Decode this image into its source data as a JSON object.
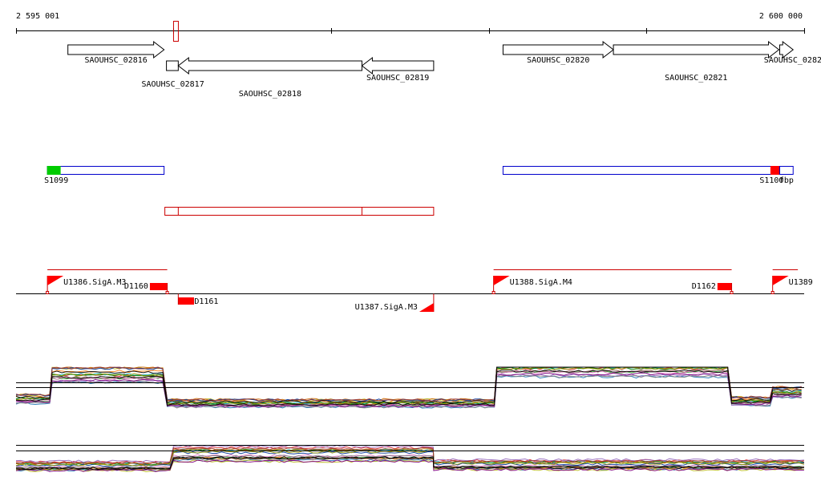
{
  "ruler": {
    "start_label": "2 595 001",
    "end_label": "2 600 000",
    "start_coord": 2595001,
    "end_coord": 2600000,
    "tick_coords": [
      2595001,
      2596000,
      2597000,
      2598000,
      2599000,
      2600000
    ]
  },
  "genes": [
    {
      "id": "SAOUHSC_02816",
      "label": "SAOUHSC_02816",
      "start": 2595330,
      "end": 2595940,
      "strand": "+",
      "row": 0
    },
    {
      "id": "SAOUHSC_02817",
      "label": "SAOUHSC_02817",
      "start": 2595955,
      "end": 2596030,
      "strand": "-",
      "row": 1
    },
    {
      "id": "SAOUHSC_02818",
      "label": "SAOUHSC_02818",
      "start": 2596030,
      "end": 2597195,
      "strand": "-",
      "row": 1
    },
    {
      "id": "SAOUHSC_02819",
      "label": "SAOUHSC_02819",
      "start": 2597195,
      "end": 2597650,
      "strand": "-",
      "row": 1
    },
    {
      "id": "SAOUHSC_02820",
      "label": "SAOUHSC_02820",
      "start": 2598090,
      "end": 2598790,
      "strand": "+",
      "row": 0
    },
    {
      "id": "SAOUHSC_02821",
      "label": "SAOUHSC_02821",
      "start": 2598790,
      "end": 2599840,
      "strand": "+",
      "row": 0
    },
    {
      "id": "SAOUHSC_02822",
      "label": "SAOUHSC_0282",
      "start": 2599845,
      "end": 2599930,
      "strand": "+",
      "row": 0
    }
  ],
  "highlight_box": {
    "start": 2596000,
    "end": 2596030
  },
  "operons": [
    {
      "id": "S1099",
      "label": "S1099",
      "start": 2595200,
      "end": 2595940,
      "color": "#0000cc",
      "accent": "#00cc00",
      "accent_side": "left"
    },
    {
      "id": "S1100",
      "label": "S1100",
      "start": 2598090,
      "end": 2599870,
      "color": "#0000cc",
      "accent": "#ff0000",
      "accent_side": "right"
    },
    {
      "id": "fbp",
      "label": "fbp",
      "start": 2599845,
      "end": 2599930,
      "color": "#0000cc",
      "accent": "",
      "accent_side": ""
    }
  ],
  "red_segment": {
    "start": 2595945,
    "end": 2597650,
    "splits": [
      2596030,
      2597195
    ],
    "color": "#cc0000"
  },
  "tus": [
    {
      "id": "U1386.SigA.M3",
      "label": "U1386.SigA.M3",
      "start": 2595200,
      "end": 2595960,
      "strand": "+"
    },
    {
      "id": "U1388.SigA.M4",
      "label": "U1388.SigA.M4",
      "start": 2598030,
      "end": 2599540,
      "strand": "+"
    },
    {
      "id": "U1389",
      "label": "U1389",
      "start": 2599800,
      "end": 2599960,
      "strand": "+"
    },
    {
      "id": "U1387.SigA.M3",
      "label": "U1387.SigA.M3",
      "start": 2597450,
      "end": 2597650,
      "strand": "-"
    }
  ],
  "downshifts": [
    {
      "id": "D1160",
      "label": "D1160",
      "start": 2595850,
      "end": 2595960,
      "strand": "+"
    },
    {
      "id": "D1161",
      "label": "D1161",
      "start": 2596030,
      "end": 2596130,
      "strand": "-"
    },
    {
      "id": "D1162",
      "label": "D1162",
      "start": 2599450,
      "end": 2599540,
      "strand": "+"
    }
  ],
  "expression_tracks": [
    {
      "id": "track-top",
      "segments": [
        {
          "start": 2595001,
          "end": 2595230,
          "level": 0.3
        },
        {
          "start": 2595230,
          "end": 2595960,
          "level": 0.85
        },
        {
          "start": 2595960,
          "end": 2598050,
          "level": 0.2
        },
        {
          "start": 2598050,
          "end": 2599540,
          "level": 1.0
        },
        {
          "start": 2599540,
          "end": 2599800,
          "level": 0.25
        },
        {
          "start": 2599800,
          "end": 2600000,
          "level": 0.45
        }
      ]
    },
    {
      "id": "track-bottom",
      "segments": [
        {
          "start": 2595001,
          "end": 2596000,
          "level": 0.35
        },
        {
          "start": 2596000,
          "end": 2597650,
          "level": 0.85
        },
        {
          "start": 2597650,
          "end": 2600000,
          "level": 0.4
        }
      ]
    }
  ],
  "line_colors": [
    "#d62728",
    "#2ca02c",
    "#1f77b4",
    "#ff7f0e",
    "#9467bd",
    "#8c564b",
    "#e377c2",
    "#7f7f7f",
    "#bcbd22",
    "#17becf",
    "#008000",
    "#800080",
    "#cc6600",
    "#003399",
    "#999900",
    "#993333"
  ]
}
